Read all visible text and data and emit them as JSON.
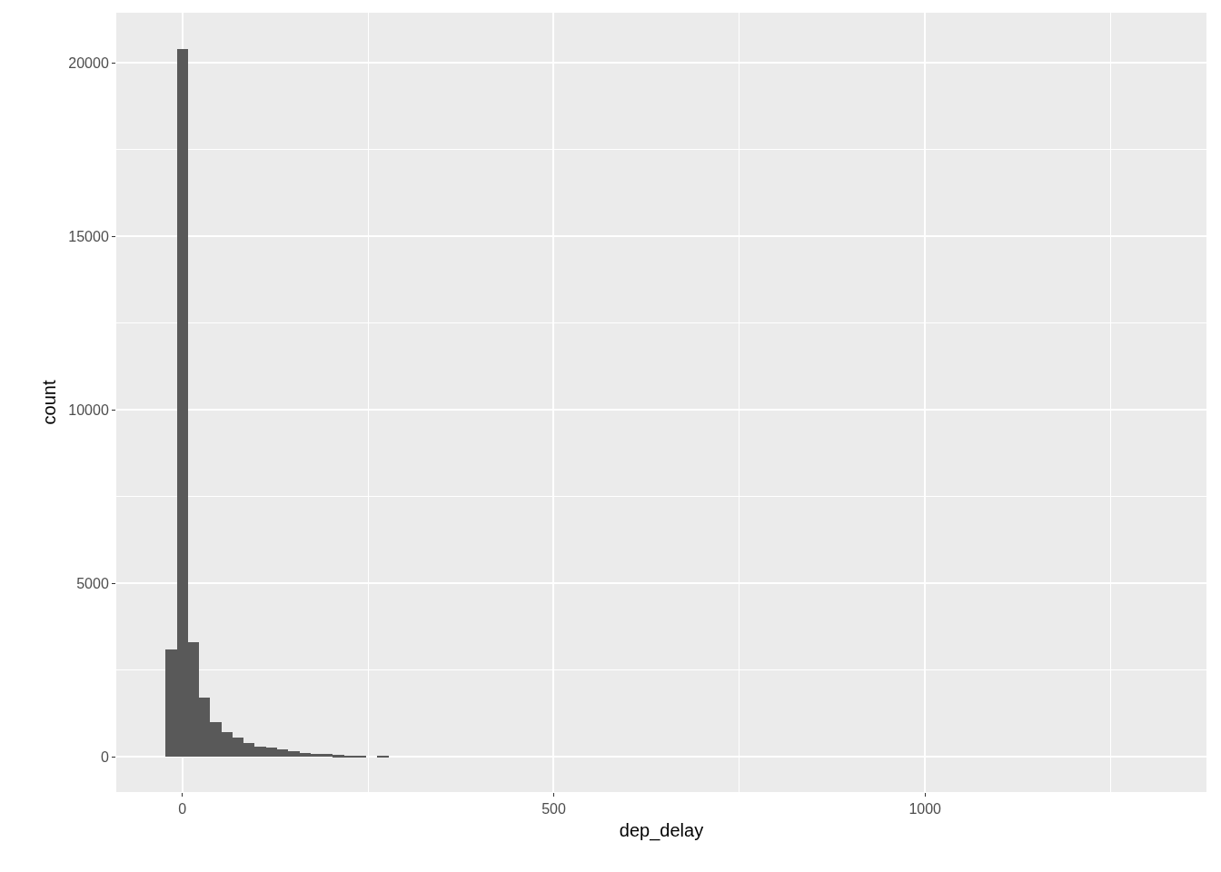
{
  "chart_data": {
    "type": "histogram",
    "xlabel": "dep_delay",
    "ylabel": "count",
    "bins": [
      -22.5,
      -7.5,
      7.5,
      22.5,
      37.5,
      52.5,
      67.5,
      82.5,
      97.5,
      112.5,
      127.5,
      142.5,
      157.5,
      172.5,
      187.5,
      202.5,
      217.5,
      232.5,
      247.5,
      262.5,
      277.5
    ],
    "values": [
      3100,
      20400,
      3300,
      1700,
      1000,
      700,
      550,
      400,
      300,
      250,
      200,
      150,
      100,
      80,
      70,
      50,
      30,
      20,
      0,
      30
    ],
    "color": "#595959",
    "xlim": [
      -89,
      1379
    ],
    "xticks": [
      0,
      {
        "value": 250,
        "label": null
      },
      500,
      {
        "value": 750,
        "label": null
      },
      1000,
      {
        "value": 1250,
        "label": null
      }
    ],
    "ylim": [
      -1020,
      21440
    ],
    "yticks": [
      0,
      {
        "value": 2500,
        "label": null
      },
      5000,
      {
        "value": 7500,
        "label": null
      },
      10000,
      {
        "value": 12500,
        "label": null
      },
      15000,
      {
        "value": 17500,
        "label": null
      },
      20000
    ],
    "grid": true
  }
}
